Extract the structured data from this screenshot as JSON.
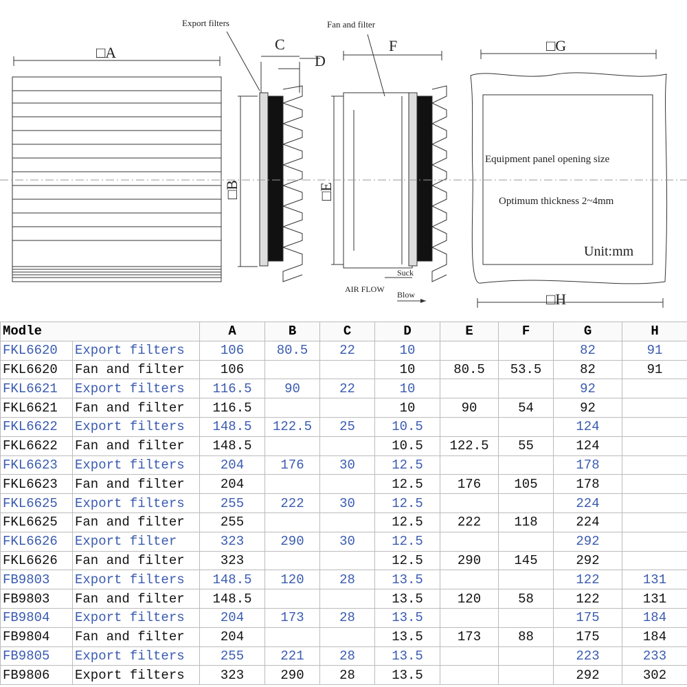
{
  "diagram": {
    "labels": {
      "export_filters": "Export filters",
      "fan_and_filter": "Fan and filter",
      "a": "□A",
      "b": "□B",
      "c": "C",
      "d": "D",
      "e": "□E",
      "f": "F",
      "g": "□G",
      "h": "□H",
      "opening": "Equipment panel opening size",
      "thickness": "Optimum thickness 2~4mm",
      "unit": "Unit:mm",
      "suck": "Suck",
      "air_flow": "AIR FLOW",
      "blow": "Blow"
    }
  },
  "table": {
    "header": [
      "Modle",
      "A",
      "B",
      "C",
      "D",
      "E",
      "F",
      "G",
      "H"
    ],
    "rows": [
      {
        "color": "#3a5bb0",
        "cells": [
          "FKL6620",
          "Export filters",
          "106",
          "80.5",
          "22",
          "10",
          null,
          null,
          "82",
          "91"
        ]
      },
      {
        "color": "#111111",
        "cells": [
          "FKL6620",
          "Fan and filter",
          "106",
          null,
          null,
          "10",
          "80.5",
          "53.5",
          "82",
          "91"
        ]
      },
      {
        "color": "#3a5bb0",
        "cells": [
          "FKL6621",
          "Export filters",
          "116.5",
          "90",
          "22",
          "10",
          null,
          null,
          "92",
          null
        ]
      },
      {
        "color": "#111111",
        "cells": [
          "FKL6621",
          "Fan and filter",
          "116.5",
          null,
          null,
          "10",
          "90",
          "54",
          "92",
          null
        ]
      },
      {
        "color": "#3a5bb0",
        "cells": [
          "FKL6622",
          "Export filters",
          "148.5",
          "122.5",
          "25",
          "10.5",
          null,
          null,
          "124",
          null
        ]
      },
      {
        "color": "#111111",
        "cells": [
          "FKL6622",
          "Fan and filter",
          "148.5",
          null,
          null,
          "10.5",
          "122.5",
          "55",
          "124",
          null
        ]
      },
      {
        "color": "#3a5bb0",
        "cells": [
          "FKL6623",
          "Export filters",
          "204",
          "176",
          "30",
          "12.5",
          null,
          null,
          "178",
          null
        ]
      },
      {
        "color": "#111111",
        "cells": [
          "FKL6623",
          "Fan and filter",
          "204",
          null,
          null,
          "12.5",
          "176",
          "105",
          "178",
          null
        ]
      },
      {
        "color": "#3a5bb0",
        "cells": [
          "FKL6625",
          "Export filters",
          "255",
          "222",
          "30",
          "12.5",
          null,
          null,
          "224",
          null
        ]
      },
      {
        "color": "#111111",
        "cells": [
          "FKL6625",
          "Fan and filter",
          "255",
          null,
          null,
          "12.5",
          "222",
          "118",
          "224",
          null
        ]
      },
      {
        "color": "#3a5bb0",
        "cells": [
          "FKL6626",
          "Export filter",
          "323",
          "290",
          "30",
          "12.5",
          null,
          null,
          "292",
          null
        ]
      },
      {
        "color": "#111111",
        "cells": [
          "FKL6626",
          "Fan and filter",
          "323",
          null,
          null,
          "12.5",
          "290",
          "145",
          "292",
          null
        ]
      },
      {
        "color": "#3a5bb0",
        "cells": [
          "FB9803",
          "Export filters",
          "148.5",
          "120",
          "28",
          "13.5",
          null,
          null,
          "122",
          "131"
        ]
      },
      {
        "color": "#111111",
        "cells": [
          "FB9803",
          "Fan and filter",
          "148.5",
          null,
          null,
          "13.5",
          "120",
          "58",
          "122",
          "131"
        ]
      },
      {
        "color": "#3a5bb0",
        "cells": [
          "FB9804",
          "Export filters",
          "204",
          "173",
          "28",
          "13.5",
          null,
          null,
          "175",
          "184"
        ]
      },
      {
        "color": "#111111",
        "cells": [
          "FB9804",
          "Fan and filter",
          "204",
          null,
          null,
          "13.5",
          "173",
          "88",
          "175",
          "184"
        ]
      },
      {
        "color": "#3a5bb0",
        "cells": [
          "FB9805",
          "Export filters",
          "255",
          "221",
          "28",
          "13.5",
          null,
          null,
          "223",
          "233"
        ]
      },
      {
        "color": "#111111",
        "cells": [
          "FB9806",
          "Export filters",
          "323",
          "290",
          "28",
          "13.5",
          null,
          null,
          "292",
          "302"
        ]
      }
    ]
  }
}
